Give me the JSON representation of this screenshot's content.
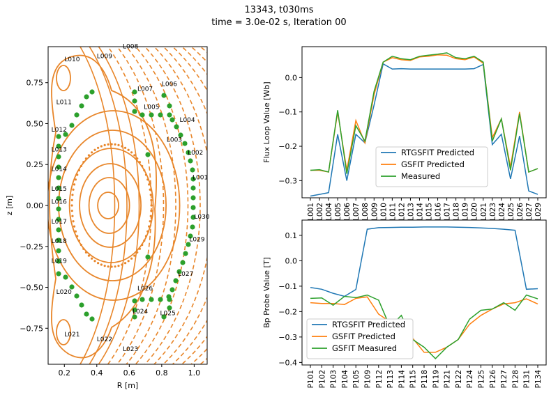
{
  "figure": {
    "title_line1": "13343,  t030ms",
    "title_line2": "time = 3.0e-02 s, Iteration 00"
  },
  "colors": {
    "blue": "#1f77b4",
    "orange": "#ff7f0e",
    "green": "#2ca02c",
    "contour": "#e8862a",
    "dots": "#2ca02c"
  },
  "chart_data": [
    {
      "type": "contour",
      "xlabel": "R [m]",
      "ylabel": "z [m]",
      "xlim": [
        0.1,
        1.08
      ],
      "ylim": [
        -0.97,
        0.97
      ],
      "xticks": [
        0.2,
        0.4,
        0.6,
        0.8,
        1.0
      ],
      "xtick_labels": [
        "0.2",
        "0.4",
        "0.6",
        "0.8",
        "1.0"
      ],
      "yticks": [
        -0.75,
        -0.5,
        -0.25,
        0.0,
        0.25,
        0.5,
        0.75
      ],
      "ytick_labels": [
        "−0.75",
        "−0.50",
        "−0.25",
        "0.00",
        "0.25",
        "0.50",
        "0.75"
      ],
      "axis_center": [
        0.47,
        0.0
      ],
      "flux_loops": [
        {
          "name": "L001",
          "r": 0.99,
          "z": 0.16
        },
        {
          "name": "L002",
          "r": 0.96,
          "z": 0.31
        },
        {
          "name": "L003",
          "r": 0.83,
          "z": 0.39
        },
        {
          "name": "L004",
          "r": 0.91,
          "z": 0.51
        },
        {
          "name": "L005",
          "r": 0.69,
          "z": 0.59
        },
        {
          "name": "L006",
          "r": 0.8,
          "z": 0.73
        },
        {
          "name": "L007",
          "r": 0.65,
          "z": 0.7
        },
        {
          "name": "L008",
          "r": 0.56,
          "z": 0.96
        },
        {
          "name": "L009",
          "r": 0.4,
          "z": 0.9
        },
        {
          "name": "L010",
          "r": 0.2,
          "z": 0.88
        },
        {
          "name": "L011",
          "r": 0.15,
          "z": 0.62
        },
        {
          "name": "L012",
          "r": 0.12,
          "z": 0.45
        },
        {
          "name": "L013",
          "r": 0.12,
          "z": 0.33
        },
        {
          "name": "L014",
          "r": 0.12,
          "z": 0.21
        },
        {
          "name": "L015",
          "r": 0.12,
          "z": 0.09
        },
        {
          "name": "L016",
          "r": 0.12,
          "z": 0.01
        },
        {
          "name": "L017",
          "r": 0.12,
          "z": -0.11
        },
        {
          "name": "L018",
          "r": 0.12,
          "z": -0.23
        },
        {
          "name": "L019",
          "r": 0.12,
          "z": -0.35
        },
        {
          "name": "L020",
          "r": 0.15,
          "z": -0.54
        },
        {
          "name": "L021",
          "r": 0.2,
          "z": -0.8
        },
        {
          "name": "L022",
          "r": 0.4,
          "z": -0.83
        },
        {
          "name": "L023",
          "r": 0.56,
          "z": -0.89
        },
        {
          "name": "L024",
          "r": 0.62,
          "z": -0.66
        },
        {
          "name": "L025",
          "r": 0.79,
          "z": -0.67
        },
        {
          "name": "L026",
          "r": 0.65,
          "z": -0.52
        },
        {
          "name": "L027",
          "r": 0.9,
          "z": -0.43
        },
        {
          "name": "L029",
          "r": 0.97,
          "z": -0.22
        },
        {
          "name": "L030",
          "r": 1.0,
          "z": -0.08
        }
      ]
    },
    {
      "type": "line",
      "ylabel": "Flux Loop Value [Wb]",
      "ylim": [
        -0.35,
        0.09
      ],
      "yticks": [
        -0.3,
        -0.2,
        -0.1,
        0.0
      ],
      "ytick_labels": [
        "−0.3",
        "−0.2",
        "−0.1",
        "0.0"
      ],
      "categories": [
        "L001",
        "L002",
        "L004",
        "L005",
        "L006",
        "L007",
        "L008",
        "L009",
        "L010",
        "L011",
        "L012",
        "L013",
        "L014",
        "L015",
        "L016",
        "L017",
        "L018",
        "L019",
        "L020",
        "L021",
        "L023",
        "L024",
        "L025",
        "L026",
        "L027",
        "L029"
      ],
      "legend_position": "lower-center",
      "series": [
        {
          "name": "RTGSFIT Predicted",
          "color": "#1f77b4",
          "values": [
            -0.345,
            -0.34,
            -0.335,
            -0.165,
            -0.3,
            -0.165,
            -0.19,
            -0.08,
            0.04,
            0.025,
            0.026,
            0.025,
            0.025,
            0.025,
            0.025,
            0.025,
            0.025,
            0.025,
            0.026,
            0.038,
            -0.195,
            -0.165,
            -0.295,
            -0.17,
            -0.33,
            -0.34
          ]
        },
        {
          "name": "GSFIT Predicted",
          "color": "#ff7f0e",
          "values": [
            -0.27,
            -0.27,
            -0.275,
            -0.1,
            -0.27,
            -0.125,
            -0.19,
            -0.05,
            0.045,
            0.058,
            0.052,
            0.05,
            0.06,
            0.062,
            0.066,
            0.065,
            0.055,
            0.052,
            0.06,
            0.042,
            -0.175,
            -0.12,
            -0.26,
            -0.1,
            -0.275,
            -0.265
          ]
        },
        {
          "name": "Measured",
          "color": "#2ca02c",
          "values": [
            -0.27,
            -0.268,
            -0.275,
            -0.095,
            -0.28,
            -0.14,
            -0.185,
            -0.04,
            0.045,
            0.062,
            0.055,
            0.052,
            0.062,
            0.065,
            0.068,
            0.072,
            0.058,
            0.055,
            0.062,
            0.045,
            -0.185,
            -0.12,
            -0.27,
            -0.105,
            -0.275,
            -0.265
          ]
        }
      ]
    },
    {
      "type": "line",
      "ylabel": "Bp Probe Value [T]",
      "ylim": [
        -0.41,
        0.16
      ],
      "yticks": [
        -0.4,
        -0.3,
        -0.2,
        -0.1,
        0.0,
        0.1
      ],
      "ytick_labels": [
        "−0.4",
        "−0.3",
        "−0.2",
        "−0.1",
        "0.0",
        "0.1"
      ],
      "categories": [
        "P101",
        "P102",
        "P103",
        "P104",
        "P105",
        "P109",
        "P112",
        "P113",
        "P114",
        "P115",
        "P118",
        "P119",
        "P121",
        "P122",
        "P124",
        "P125",
        "P126",
        "P127",
        "P128",
        "P131",
        "P134"
      ],
      "legend_position": "lower-left",
      "series": [
        {
          "name": "RTGSFIT Predicted",
          "color": "#1f77b4",
          "values": [
            -0.105,
            -0.112,
            -0.128,
            -0.14,
            -0.113,
            0.124,
            0.13,
            0.131,
            0.132,
            0.132,
            0.133,
            0.133,
            0.133,
            0.132,
            0.131,
            0.129,
            0.127,
            0.124,
            0.12,
            -0.112,
            -0.11
          ]
        },
        {
          "name": "GSFIT Predicted",
          "color": "#ff7f0e",
          "values": [
            -0.165,
            -0.168,
            -0.168,
            -0.172,
            -0.148,
            -0.142,
            -0.21,
            -0.24,
            -0.265,
            -0.305,
            -0.36,
            -0.36,
            -0.34,
            -0.31,
            -0.25,
            -0.215,
            -0.19,
            -0.17,
            -0.165,
            -0.15,
            -0.17
          ]
        },
        {
          "name": "GSFIT Measured",
          "color": "#2ca02c",
          "values": [
            -0.148,
            -0.146,
            -0.175,
            -0.14,
            -0.145,
            -0.135,
            -0.155,
            -0.26,
            -0.215,
            -0.31,
            -0.34,
            -0.385,
            -0.34,
            -0.31,
            -0.23,
            -0.195,
            -0.19,
            -0.165,
            -0.195,
            -0.135,
            -0.15
          ]
        }
      ]
    }
  ]
}
